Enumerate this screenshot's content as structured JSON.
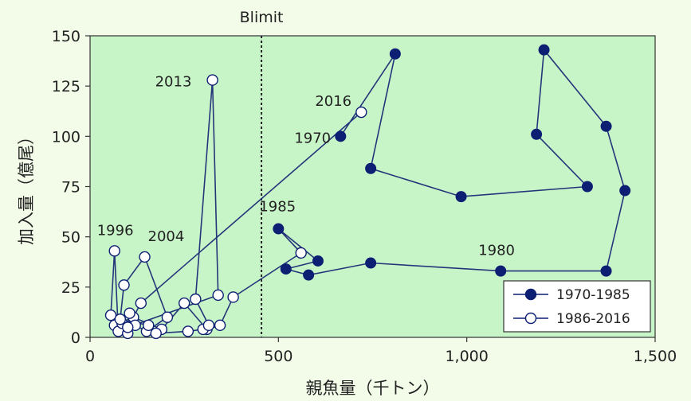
{
  "chart_data": {
    "type": "scatter",
    "title": "",
    "xlabel": "親魚量（千トン）",
    "ylabel": "加入量（億尾）",
    "xlim": [
      0,
      1500
    ],
    "ylim": [
      0,
      150
    ],
    "xticks": [
      0,
      500,
      1000,
      1500
    ],
    "xtick_labels": [
      "0",
      "500",
      "1,000",
      "1,500"
    ],
    "yticks": [
      0,
      25,
      50,
      75,
      100,
      125,
      150
    ],
    "ytick_labels": [
      "0",
      "25",
      "50",
      "75",
      "100",
      "125",
      "150"
    ],
    "reference_line": {
      "x": 455,
      "label": "Blimit",
      "style": "dotted"
    },
    "plot_background": "#c8f5c8",
    "line_color": "#24357a",
    "legend_position": "bottom-right",
    "series": [
      {
        "name": "1970-1985",
        "marker": "filled",
        "color": "#0d1f73",
        "points": [
          {
            "x": 665,
            "y": 100,
            "label": "1970"
          },
          {
            "x": 810,
            "y": 141
          },
          {
            "x": 745,
            "y": 84
          },
          {
            "x": 985,
            "y": 70
          },
          {
            "x": 1320,
            "y": 75
          },
          {
            "x": 1185,
            "y": 101
          },
          {
            "x": 1205,
            "y": 143
          },
          {
            "x": 1370,
            "y": 105
          },
          {
            "x": 1420,
            "y": 73
          },
          {
            "x": 1370,
            "y": 33
          },
          {
            "x": 1090,
            "y": 33,
            "label": "1980"
          },
          {
            "x": 745,
            "y": 37
          },
          {
            "x": 580,
            "y": 31
          },
          {
            "x": 520,
            "y": 34
          },
          {
            "x": 605,
            "y": 38
          },
          {
            "x": 500,
            "y": 54,
            "label": "1985"
          }
        ]
      },
      {
        "name": "1986-2016",
        "marker": "open",
        "color": "#0d1f73",
        "points": [
          {
            "x": 560,
            "y": 42
          },
          {
            "x": 380,
            "y": 20
          },
          {
            "x": 345,
            "y": 6
          },
          {
            "x": 310,
            "y": 4
          },
          {
            "x": 250,
            "y": 17
          },
          {
            "x": 190,
            "y": 4
          },
          {
            "x": 115,
            "y": 10
          },
          {
            "x": 65,
            "y": 6
          },
          {
            "x": 55,
            "y": 11
          },
          {
            "x": 65,
            "y": 43,
            "label": "1996"
          },
          {
            "x": 75,
            "y": 3
          },
          {
            "x": 85,
            "y": 7
          },
          {
            "x": 100,
            "y": 2
          },
          {
            "x": 105,
            "y": 12
          },
          {
            "x": 120,
            "y": 6
          },
          {
            "x": 150,
            "y": 3
          },
          {
            "x": 205,
            "y": 10
          },
          {
            "x": 145,
            "y": 40,
            "label": "2004"
          },
          {
            "x": 90,
            "y": 26
          },
          {
            "x": 80,
            "y": 9
          },
          {
            "x": 155,
            "y": 6
          },
          {
            "x": 175,
            "y": 2
          },
          {
            "x": 260,
            "y": 3
          },
          {
            "x": 300,
            "y": 4
          },
          {
            "x": 315,
            "y": 6
          },
          {
            "x": 280,
            "y": 19
          },
          {
            "x": 325,
            "y": 128,
            "label": "2013"
          },
          {
            "x": 340,
            "y": 21
          },
          {
            "x": 100,
            "y": 5
          },
          {
            "x": 135,
            "y": 17
          },
          {
            "x": 720,
            "y": 112,
            "label": "2016"
          }
        ]
      }
    ]
  }
}
